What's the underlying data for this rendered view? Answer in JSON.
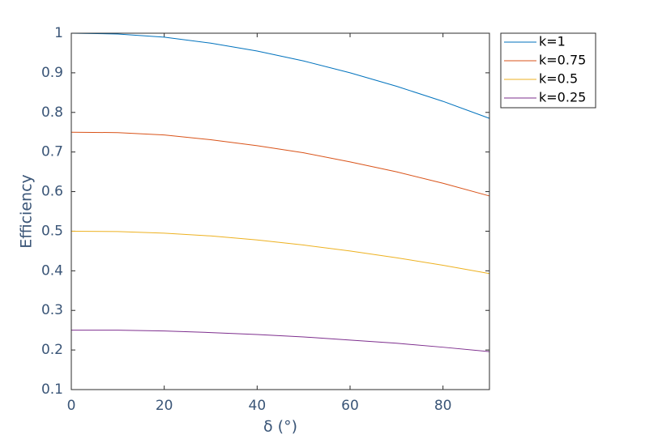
{
  "chart_data": {
    "type": "line",
    "xlabel": "δ (°)",
    "ylabel": "Efficiency",
    "x": [
      0,
      10,
      20,
      30,
      40,
      50,
      60,
      70,
      80,
      90
    ],
    "series": [
      {
        "name": "k=1",
        "color": "#0072BD",
        "values": [
          1,
          0.998,
          0.99,
          0.975,
          0.955,
          0.93,
          0.9,
          0.866,
          0.828,
          0.785
        ]
      },
      {
        "name": "k=0.75",
        "color": "#D95319",
        "values": [
          0.75,
          0.749,
          0.743,
          0.731,
          0.716,
          0.698,
          0.675,
          0.65,
          0.621,
          0.589
        ]
      },
      {
        "name": "k=0.5",
        "color": "#EDB120",
        "values": [
          0.5,
          0.499,
          0.495,
          0.488,
          0.478,
          0.465,
          0.45,
          0.433,
          0.414,
          0.393
        ]
      },
      {
        "name": "k=0.25",
        "color": "#7E2F8E",
        "values": [
          0.25,
          0.25,
          0.248,
          0.244,
          0.239,
          0.233,
          0.225,
          0.217,
          0.207,
          0.196
        ]
      }
    ],
    "xlim": [
      0,
      90
    ],
    "xticks": [
      0,
      20,
      40,
      60,
      80
    ],
    "ylim": [
      0.1,
      1
    ],
    "yticks": [
      0.1,
      0.2,
      0.3,
      0.4,
      0.5,
      0.6,
      0.7,
      0.8,
      0.9,
      1
    ],
    "legend": "outside-top-right"
  }
}
